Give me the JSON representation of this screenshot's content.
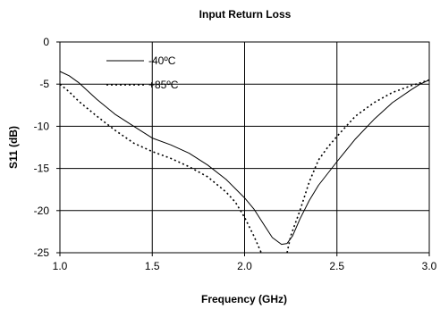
{
  "chart_data": {
    "type": "line",
    "title": "Input Return Loss",
    "xlabel": "Frequency (GHz)",
    "ylabel": "S11 (dB)",
    "xlim": [
      1.0,
      3.0
    ],
    "ylim": [
      -25,
      0
    ],
    "x_ticks": [
      "1.0",
      "1.5",
      "2.0",
      "2.5",
      "3.0"
    ],
    "y_ticks": [
      "0",
      "-5",
      "-10",
      "-15",
      "-20",
      "-25"
    ],
    "x_tick_values": [
      1.0,
      1.5,
      2.0,
      2.5,
      3.0
    ],
    "y_tick_values": [
      0,
      -5,
      -10,
      -15,
      -20,
      -25
    ],
    "grid": true,
    "legend_position": "top-left",
    "series": [
      {
        "name": "-40ºC",
        "style": "solid",
        "color": "#000000",
        "x": [
          1.0,
          1.05,
          1.1,
          1.2,
          1.3,
          1.4,
          1.5,
          1.6,
          1.7,
          1.8,
          1.9,
          2.0,
          2.05,
          2.1,
          2.15,
          2.2,
          2.23,
          2.26,
          2.3,
          2.35,
          2.4,
          2.5,
          2.6,
          2.7,
          2.8,
          2.9,
          2.95,
          3.0
        ],
        "y": [
          -3.5,
          -4.0,
          -4.8,
          -6.8,
          -8.6,
          -10.0,
          -11.4,
          -12.2,
          -13.2,
          -14.6,
          -16.3,
          -18.5,
          -19.8,
          -21.5,
          -23.2,
          -24.0,
          -23.9,
          -23.0,
          -21.0,
          -18.8,
          -17.0,
          -14.2,
          -11.5,
          -9.2,
          -7.2,
          -5.7,
          -5.0,
          -4.5
        ]
      },
      {
        "name": "+85ºC",
        "style": "dotted",
        "color": "#000000",
        "x": [
          1.0,
          1.05,
          1.1,
          1.2,
          1.3,
          1.4,
          1.5,
          1.6,
          1.7,
          1.8,
          1.9,
          1.95,
          2.0,
          2.05,
          2.07,
          2.09,
          2.1
        ],
        "y": [
          -5.0,
          -5.9,
          -7.0,
          -8.8,
          -10.5,
          -12.0,
          -13.0,
          -13.8,
          -14.8,
          -16.0,
          -17.8,
          -19.0,
          -20.8,
          -23.0,
          -24.0,
          -25.0,
          -25.0
        ]
      },
      {
        "name": "+85ºC",
        "style": "dotted",
        "color": "#000000",
        "x": [
          2.23,
          2.25,
          2.3,
          2.35,
          2.4,
          2.45,
          2.5,
          2.55,
          2.6,
          2.7,
          2.8,
          2.9,
          3.0
        ],
        "y": [
          -25.0,
          -23.0,
          -20.0,
          -16.6,
          -14.0,
          -12.5,
          -11.2,
          -10.0,
          -8.8,
          -7.2,
          -6.0,
          -5.2,
          -4.5
        ]
      }
    ]
  }
}
